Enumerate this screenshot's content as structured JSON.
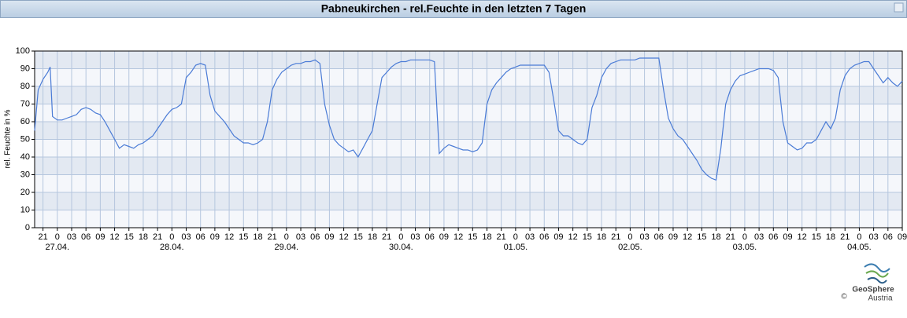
{
  "chart_data": {
    "type": "line",
    "title": "Pabneukirchen - rel.Feuchte in den letzten 7 Tagen",
    "ylabel": "rel. Feuchte in %",
    "logo": {
      "name": "GeoSphere",
      "sub": "Austria",
      "copyright": "©"
    },
    "grid": true,
    "xlim": [
      -4.75,
      177
    ],
    "ylim": [
      0,
      100
    ],
    "yticks": [
      0,
      10,
      20,
      30,
      40,
      50,
      60,
      70,
      80,
      90,
      100
    ],
    "xticks": [
      {
        "value": -3,
        "label": "21"
      },
      0,
      {
        "value": 3,
        "label": "03"
      },
      {
        "value": 6,
        "label": "06"
      },
      {
        "value": 9,
        "label": "09"
      },
      {
        "value": 12,
        "label": "12"
      },
      {
        "value": 15,
        "label": "15"
      },
      {
        "value": 18,
        "label": "18"
      },
      {
        "value": 21,
        "label": "21"
      },
      {
        "value": 24,
        "label": "0"
      },
      {
        "value": 27,
        "label": "03"
      },
      {
        "value": 30,
        "label": "06"
      },
      {
        "value": 33,
        "label": "09"
      },
      {
        "value": 36,
        "label": "12"
      },
      {
        "value": 39,
        "label": "15"
      },
      {
        "value": 42,
        "label": "18"
      },
      {
        "value": 45,
        "label": "21"
      },
      {
        "value": 48,
        "label": "0"
      },
      {
        "value": 51,
        "label": "03"
      },
      {
        "value": 54,
        "label": "06"
      },
      {
        "value": 57,
        "label": "09"
      },
      {
        "value": 60,
        "label": "12"
      },
      {
        "value": 63,
        "label": "15"
      },
      {
        "value": 66,
        "label": "18"
      },
      {
        "value": 69,
        "label": "21"
      },
      {
        "value": 72,
        "label": "0"
      },
      {
        "value": 75,
        "label": "03"
      },
      {
        "value": 78,
        "label": "06"
      },
      {
        "value": 81,
        "label": "09"
      },
      {
        "value": 84,
        "label": "12"
      },
      {
        "value": 87,
        "label": "15"
      },
      {
        "value": 90,
        "label": "18"
      },
      {
        "value": 93,
        "label": "21"
      },
      {
        "value": 96,
        "label": "0"
      },
      {
        "value": 99,
        "label": "03"
      },
      {
        "value": 102,
        "label": "06"
      },
      {
        "value": 105,
        "label": "09"
      },
      {
        "value": 108,
        "label": "12"
      },
      {
        "value": 111,
        "label": "15"
      },
      {
        "value": 114,
        "label": "18"
      },
      {
        "value": 117,
        "label": "21"
      },
      {
        "value": 120,
        "label": "0"
      },
      {
        "value": 123,
        "label": "03"
      },
      {
        "value": 126,
        "label": "06"
      },
      {
        "value": 129,
        "label": "09"
      },
      {
        "value": 132,
        "label": "12"
      },
      {
        "value": 135,
        "label": "15"
      },
      {
        "value": 138,
        "label": "18"
      },
      {
        "value": 141,
        "label": "21"
      },
      {
        "value": 144,
        "label": "0"
      },
      {
        "value": 147,
        "label": "03"
      },
      {
        "value": 150,
        "label": "06"
      },
      {
        "value": 153,
        "label": "09"
      },
      {
        "value": 156,
        "label": "12"
      },
      {
        "value": 159,
        "label": "15"
      },
      {
        "value": 162,
        "label": "18"
      },
      {
        "value": 165,
        "label": "21"
      },
      {
        "value": 168,
        "label": "0"
      },
      {
        "value": 171,
        "label": "03"
      },
      {
        "value": 174,
        "label": "06"
      },
      {
        "value": 177,
        "label": "09"
      }
    ],
    "date_labels": [
      {
        "value": 0,
        "label": "27.04."
      },
      {
        "value": 24,
        "label": "28.04."
      },
      {
        "value": 48,
        "label": "29.04."
      },
      {
        "value": 72,
        "label": "30.04."
      },
      {
        "value": 96,
        "label": "01.05."
      },
      {
        "value": 120,
        "label": "02.05."
      },
      {
        "value": 144,
        "label": "03.05."
      },
      {
        "value": 168,
        "label": "04.05."
      }
    ],
    "x": [
      -4.75,
      -4,
      -3,
      -2,
      -1.5,
      -1,
      0,
      1,
      2,
      3,
      4,
      5,
      6,
      7,
      8,
      9,
      10,
      11,
      12,
      13,
      14,
      15,
      16,
      17,
      18,
      19,
      20,
      21,
      22,
      23,
      24,
      25,
      26,
      27,
      28,
      29,
      30,
      31,
      32,
      33,
      34,
      35,
      36,
      37,
      38,
      39,
      40,
      41,
      42,
      43,
      44,
      45,
      46,
      47,
      48,
      49,
      50,
      51,
      52,
      53,
      54,
      55,
      56,
      57,
      58,
      59,
      60,
      61,
      62,
      63,
      64,
      65,
      66,
      67,
      68,
      69,
      70,
      71,
      72,
      73,
      74,
      75,
      76,
      77,
      78,
      79,
      80,
      81,
      82,
      83,
      84,
      85,
      86,
      87,
      88,
      89,
      90,
      91,
      92,
      93,
      94,
      95,
      96,
      97,
      98,
      99,
      100,
      101,
      102,
      103,
      104,
      105,
      106,
      107,
      108,
      109,
      110,
      111,
      112,
      113,
      114,
      115,
      116,
      117,
      118,
      119,
      120,
      121,
      122,
      123,
      124,
      125,
      126,
      127,
      128,
      129,
      130,
      131,
      132,
      133,
      134,
      135,
      136,
      137,
      138,
      139,
      140,
      141,
      142,
      143,
      144,
      145,
      146,
      147,
      148,
      149,
      150,
      151,
      152,
      153,
      154,
      155,
      156,
      157,
      158,
      159,
      160,
      161,
      162,
      163,
      164,
      165,
      166,
      167,
      168,
      169,
      170,
      171,
      172,
      173,
      174,
      175,
      176,
      177
    ],
    "series": [
      {
        "color": "#4a7bd6",
        "values": [
          55,
          78,
          84,
          88,
          91,
          63,
          61,
          61,
          62,
          63,
          64,
          67,
          68,
          67,
          65,
          64,
          60,
          55,
          50,
          45,
          47,
          46,
          45,
          47,
          48,
          50,
          52,
          56,
          60,
          64,
          67,
          68,
          70,
          85,
          88,
          92,
          93,
          92,
          75,
          66,
          63,
          60,
          56,
          52,
          50,
          48,
          48,
          47,
          48,
          50,
          60,
          78,
          84,
          88,
          90,
          92,
          93,
          93,
          94,
          94,
          95,
          93,
          70,
          58,
          50,
          47,
          45,
          43,
          44,
          40,
          45,
          50,
          55,
          70,
          85,
          88,
          91,
          93,
          94,
          94,
          95,
          95,
          95,
          95,
          95,
          94,
          42,
          45,
          47,
          46,
          45,
          44,
          44,
          43,
          44,
          48,
          70,
          78,
          82,
          85,
          88,
          90,
          91,
          92,
          92,
          92,
          92,
          92,
          92,
          88,
          72,
          55,
          52,
          52,
          50,
          48,
          47,
          50,
          68,
          75,
          85,
          90,
          93,
          94,
          95,
          95,
          95,
          95,
          96,
          96,
          96,
          96,
          96,
          78,
          62,
          56,
          52,
          50,
          46,
          42,
          38,
          33,
          30,
          28,
          27,
          45,
          70,
          78,
          83,
          86,
          87,
          88,
          89,
          90,
          90,
          90,
          89,
          85,
          60,
          48,
          46,
          44,
          45,
          48,
          48,
          50,
          55,
          60,
          56,
          62,
          78,
          86,
          90,
          92,
          93,
          94,
          94,
          90,
          86,
          82,
          85,
          82,
          80,
          83
        ]
      }
    ]
  }
}
